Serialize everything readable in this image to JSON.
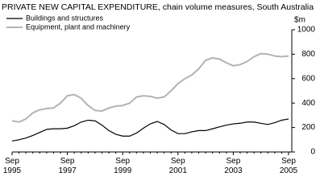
{
  "chart_data": {
    "type": "line",
    "title": "PRIVATE NEW CAPITAL EXPENDITURE, chain volume measures, South Australia",
    "y_label": "$m",
    "y_axis_side": "right",
    "legend": "top-left",
    "grid": false,
    "categories": [
      "Sep 1995",
      null,
      null,
      null,
      null,
      null,
      null,
      null,
      "Sep 1997",
      null,
      null,
      null,
      null,
      null,
      null,
      null,
      "Sep 1999",
      null,
      null,
      null,
      null,
      null,
      null,
      null,
      "Sep 2001",
      null,
      null,
      null,
      null,
      null,
      null,
      null,
      "Sep 2003",
      null,
      null,
      null,
      null,
      null,
      null,
      null,
      "Sep 2005"
    ],
    "ylim": [
      0,
      1000
    ],
    "yticks": [
      0,
      200,
      400,
      600,
      800,
      1000
    ],
    "series": [
      {
        "name": "Buildings and structures",
        "color": "#000000",
        "values": [
          90,
          100,
          115,
          135,
          160,
          185,
          190,
          190,
          195,
          215,
          245,
          260,
          255,
          220,
          175,
          145,
          130,
          130,
          155,
          195,
          230,
          250,
          225,
          180,
          150,
          150,
          165,
          175,
          175,
          190,
          205,
          220,
          230,
          235,
          245,
          245,
          235,
          225,
          240,
          260,
          270
        ]
      },
      {
        "name": "Equipment, plant and machinery",
        "color": "#b3b3b3",
        "values": [
          255,
          245,
          270,
          320,
          345,
          355,
          360,
          400,
          460,
          470,
          440,
          380,
          340,
          335,
          360,
          375,
          380,
          400,
          450,
          460,
          455,
          440,
          450,
          500,
          560,
          600,
          630,
          680,
          750,
          770,
          760,
          730,
          705,
          715,
          740,
          780,
          805,
          800,
          785,
          780,
          785
        ]
      }
    ]
  }
}
